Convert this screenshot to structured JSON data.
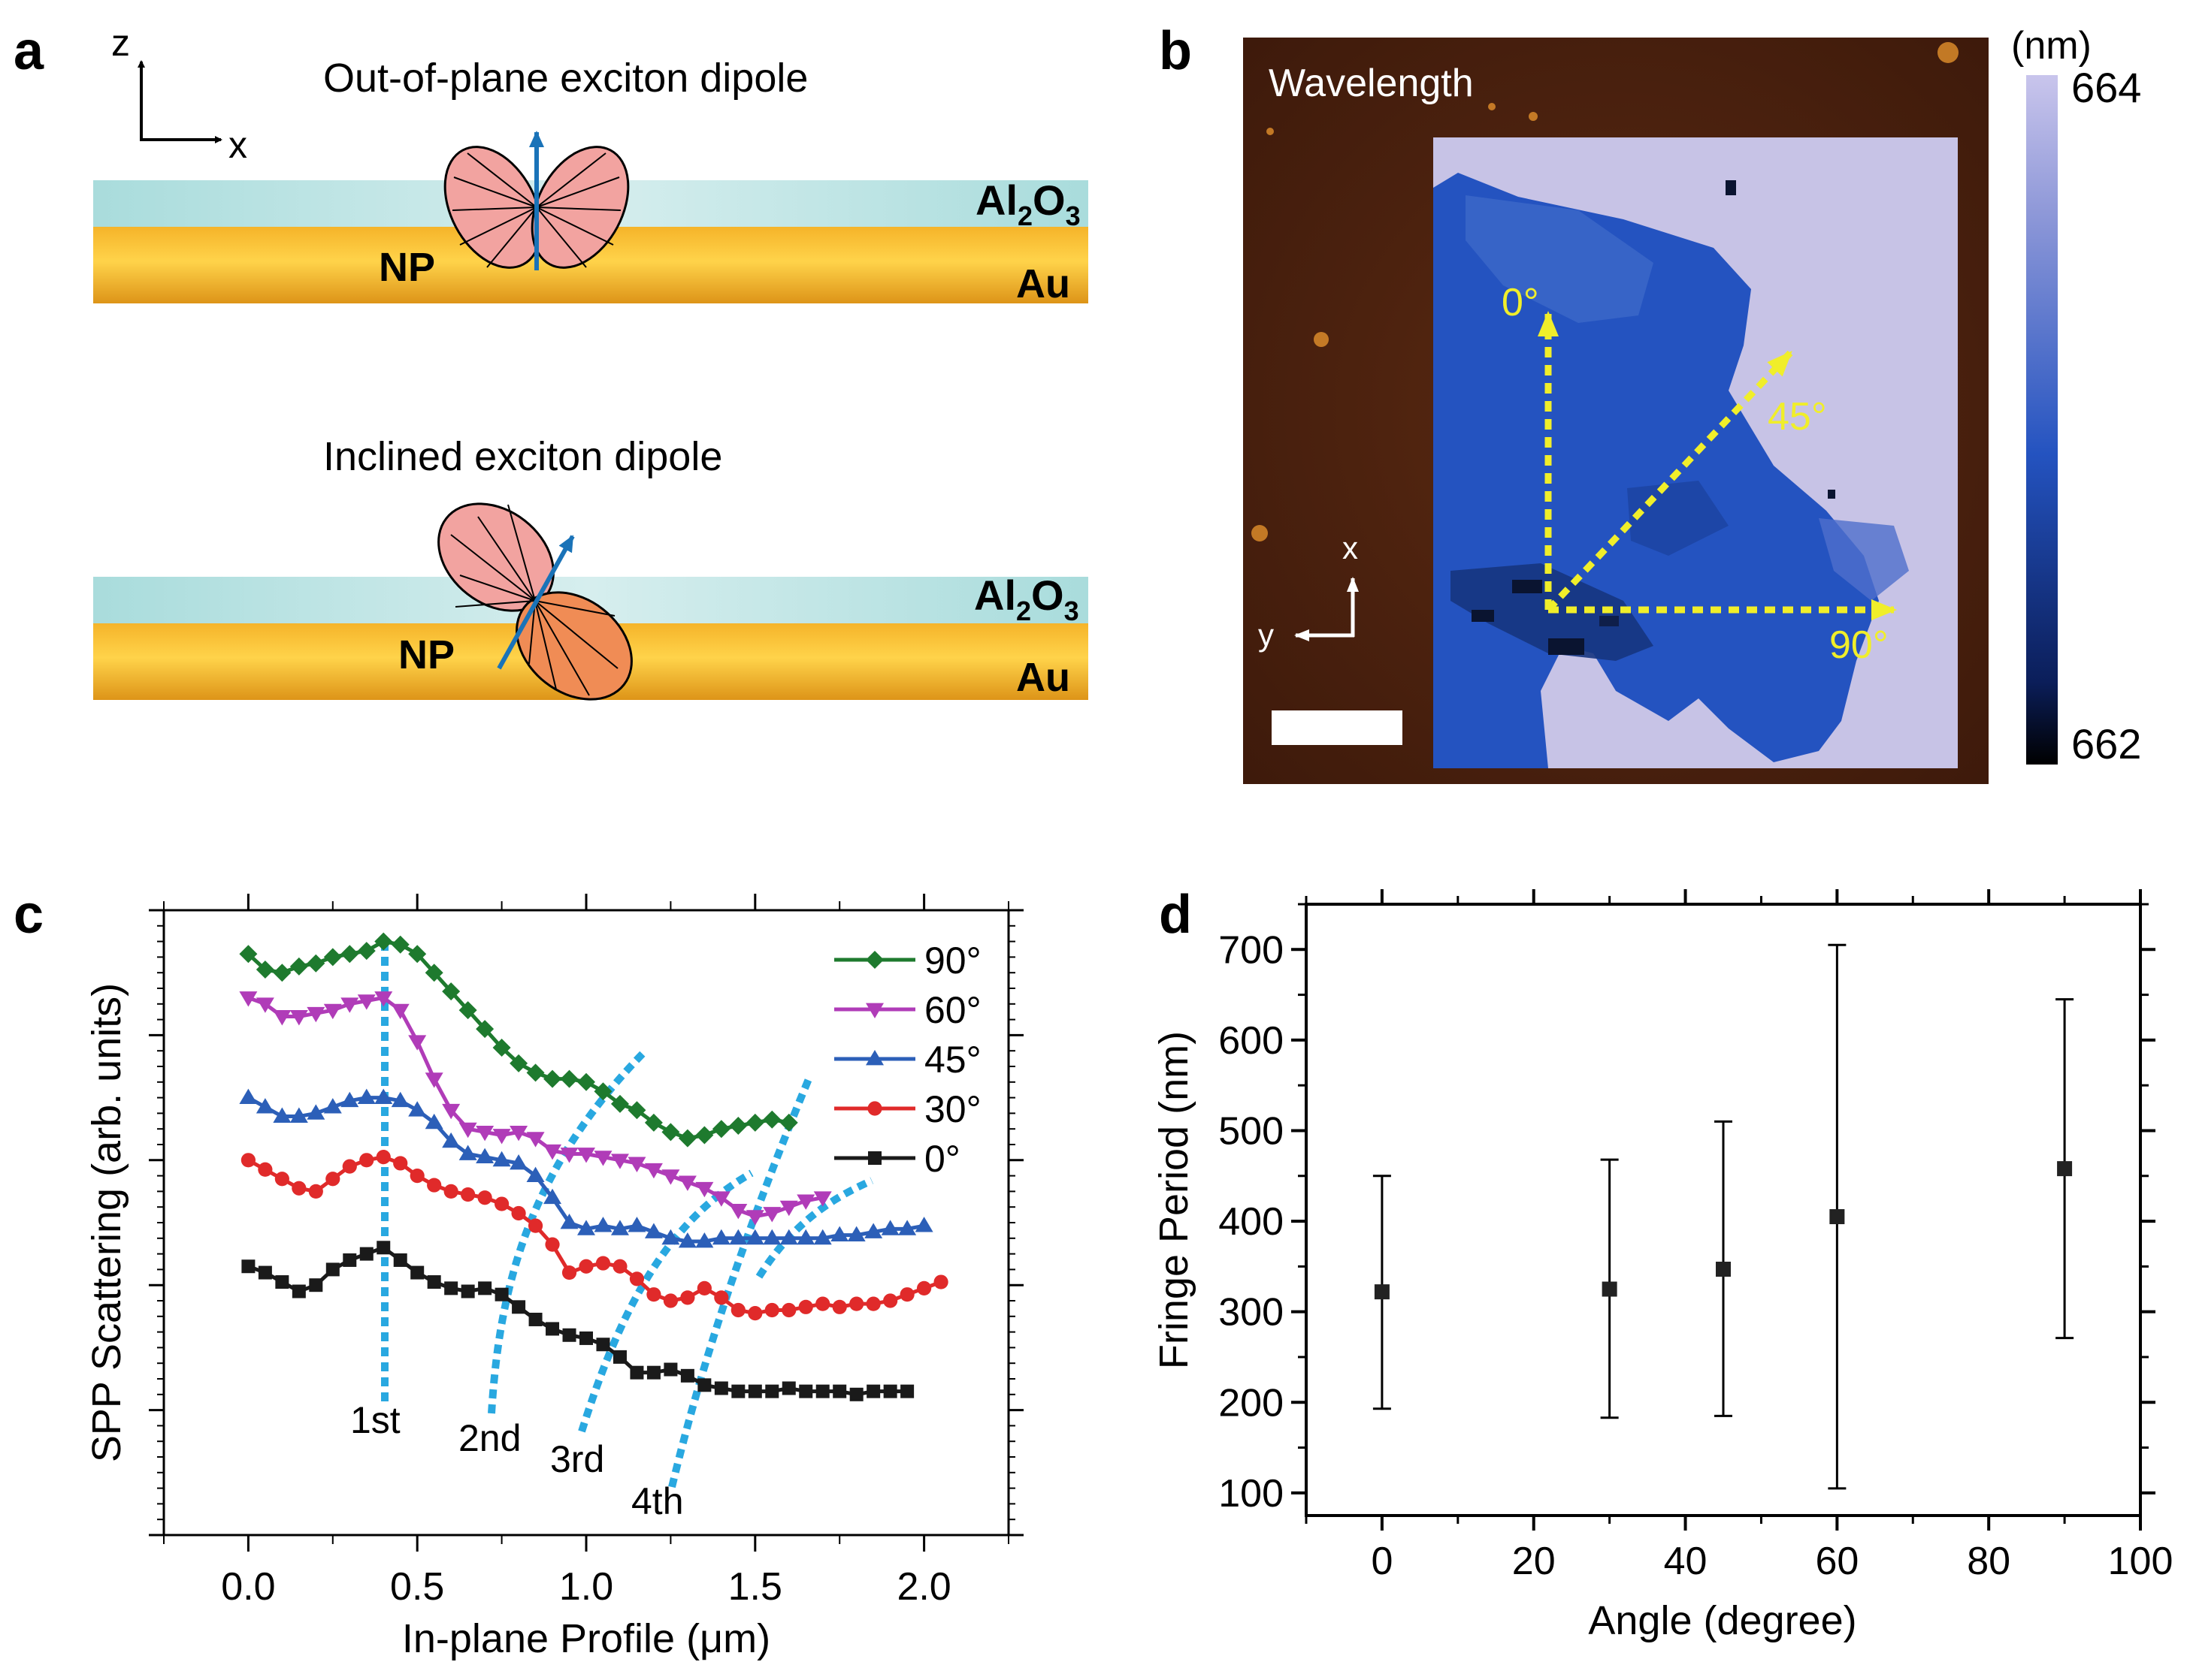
{
  "panels": {
    "a": {
      "letter": "a",
      "axis_z": "z",
      "axis_x": "x",
      "top_title": "Out-of-plane exciton dipole",
      "bottom_title": "Inclined exciton dipole",
      "layer_oxide": "Al",
      "oxide_sub1": "2",
      "oxide_o": "O",
      "oxide_sub2": "3",
      "layer_metal": "Au",
      "np_label": "NP",
      "colors": {
        "oxide": "#bfe3e3",
        "gold_light": "#ffcd3c",
        "gold_dark": "#e09a1a",
        "lobe_top": "#f2a3a0",
        "lobe_bottom": "#f08c55",
        "arrow": "#1a73b8"
      }
    },
    "b": {
      "letter": "b",
      "map_title": "Wavelength",
      "angle_0": "0°",
      "angle_45": "45°",
      "angle_90": "90°",
      "axis_x": "x",
      "axis_y": "y",
      "colorbar_unit": "(nm)",
      "colorbar_max": "664",
      "colorbar_min": "662",
      "colors": {
        "afm_bg": "#4a200e",
        "map_bg": "#c7c3e6",
        "map_blue": "#2453c0",
        "dotted_arrow": "#f0ee2a"
      }
    },
    "c": {
      "letter": "c",
      "order_labels": [
        "1st",
        "2nd",
        "3rd",
        "4th"
      ],
      "colors": {
        "guide": "#29a8e0"
      }
    },
    "d": {
      "letter": "d"
    }
  },
  "chart_data": [
    {
      "type": "line",
      "panel": "c",
      "title": "",
      "xlabel": "In-plane Profile (μm)",
      "ylabel": "SPP Scattering (arb. units)",
      "xlim": [
        -0.25,
        2.25
      ],
      "ylim": [
        0,
        10
      ],
      "xticks": [
        "0.0",
        "0.5",
        "1.0",
        "1.5",
        "2.0"
      ],
      "legend_position": "top-right",
      "series": [
        {
          "name": "90°",
          "color": "#1e7a2e",
          "marker": "diamond",
          "x": [
            0,
            0.05,
            0.1,
            0.15,
            0.2,
            0.25,
            0.3,
            0.35,
            0.4,
            0.45,
            0.5,
            0.55,
            0.6,
            0.65,
            0.7,
            0.75,
            0.8,
            0.85,
            0.9,
            0.95,
            1.0,
            1.05,
            1.1,
            1.15,
            1.2,
            1.25,
            1.3,
            1.35,
            1.4,
            1.45,
            1.5,
            1.55,
            1.6
          ],
          "y": [
            9.3,
            9.05,
            9.0,
            9.1,
            9.15,
            9.25,
            9.3,
            9.35,
            9.5,
            9.45,
            9.3,
            9.0,
            8.7,
            8.4,
            8.1,
            7.8,
            7.55,
            7.4,
            7.3,
            7.3,
            7.25,
            7.1,
            6.9,
            6.8,
            6.6,
            6.45,
            6.35,
            6.4,
            6.5,
            6.55,
            6.6,
            6.65,
            6.6
          ]
        },
        {
          "name": "60°",
          "color": "#b03cb8",
          "marker": "triangle-down",
          "x": [
            0,
            0.05,
            0.1,
            0.15,
            0.2,
            0.25,
            0.3,
            0.35,
            0.4,
            0.45,
            0.5,
            0.55,
            0.6,
            0.65,
            0.7,
            0.75,
            0.8,
            0.85,
            0.9,
            0.95,
            1.0,
            1.05,
            1.1,
            1.15,
            1.2,
            1.25,
            1.3,
            1.35,
            1.4,
            1.45,
            1.5,
            1.55,
            1.6,
            1.65,
            1.7
          ],
          "y": [
            8.6,
            8.5,
            8.3,
            8.3,
            8.35,
            8.4,
            8.5,
            8.55,
            8.6,
            8.4,
            7.9,
            7.3,
            6.8,
            6.5,
            6.45,
            6.4,
            6.45,
            6.35,
            6.15,
            6.1,
            6.1,
            6.05,
            6.0,
            5.95,
            5.85,
            5.75,
            5.65,
            5.55,
            5.4,
            5.2,
            5.1,
            5.15,
            5.25,
            5.35,
            5.4
          ]
        },
        {
          "name": "45°",
          "color": "#2c5fb8",
          "marker": "triangle-up",
          "x": [
            0,
            0.05,
            0.1,
            0.15,
            0.2,
            0.25,
            0.3,
            0.35,
            0.4,
            0.45,
            0.5,
            0.55,
            0.6,
            0.65,
            0.7,
            0.75,
            0.8,
            0.85,
            0.9,
            0.95,
            1.0,
            1.05,
            1.1,
            1.15,
            1.2,
            1.25,
            1.3,
            1.35,
            1.4,
            1.45,
            1.5,
            1.55,
            1.6,
            1.65,
            1.7,
            1.75,
            1.8,
            1.85,
            1.9,
            1.95,
            2.0
          ],
          "y": [
            7.0,
            6.85,
            6.7,
            6.7,
            6.75,
            6.85,
            6.95,
            7.0,
            7.0,
            6.95,
            6.8,
            6.6,
            6.3,
            6.1,
            6.05,
            6.0,
            5.95,
            5.75,
            5.4,
            5.0,
            4.9,
            4.95,
            4.9,
            4.95,
            4.85,
            4.75,
            4.7,
            4.7,
            4.75,
            4.75,
            4.75,
            4.75,
            4.75,
            4.75,
            4.75,
            4.8,
            4.8,
            4.85,
            4.9,
            4.9,
            4.95
          ]
        },
        {
          "name": "30°",
          "color": "#e02a2a",
          "marker": "circle",
          "x": [
            0,
            0.05,
            0.1,
            0.15,
            0.2,
            0.25,
            0.3,
            0.35,
            0.4,
            0.45,
            0.5,
            0.55,
            0.6,
            0.65,
            0.7,
            0.75,
            0.8,
            0.85,
            0.9,
            0.95,
            1.0,
            1.05,
            1.1,
            1.15,
            1.2,
            1.25,
            1.3,
            1.35,
            1.4,
            1.45,
            1.5,
            1.55,
            1.6,
            1.65,
            1.7,
            1.75,
            1.8,
            1.85,
            1.9,
            1.95,
            2.0,
            2.05
          ],
          "y": [
            6.0,
            5.85,
            5.7,
            5.55,
            5.5,
            5.7,
            5.9,
            6.0,
            6.05,
            5.95,
            5.75,
            5.6,
            5.5,
            5.45,
            5.4,
            5.3,
            5.15,
            4.95,
            4.65,
            4.2,
            4.3,
            4.35,
            4.3,
            4.1,
            3.85,
            3.75,
            3.8,
            3.95,
            3.8,
            3.6,
            3.55,
            3.6,
            3.6,
            3.65,
            3.7,
            3.65,
            3.7,
            3.7,
            3.75,
            3.85,
            3.95,
            4.05
          ]
        },
        {
          "name": "0°",
          "color": "#1a1a1a",
          "marker": "square",
          "x": [
            0,
            0.05,
            0.1,
            0.15,
            0.2,
            0.25,
            0.3,
            0.35,
            0.4,
            0.45,
            0.5,
            0.55,
            0.6,
            0.65,
            0.7,
            0.75,
            0.8,
            0.85,
            0.9,
            0.95,
            1.0,
            1.05,
            1.1,
            1.15,
            1.2,
            1.25,
            1.3,
            1.35,
            1.4,
            1.45,
            1.5,
            1.55,
            1.6,
            1.65,
            1.7,
            1.75,
            1.8,
            1.85,
            1.9,
            1.95
          ],
          "y": [
            4.3,
            4.2,
            4.05,
            3.9,
            4.0,
            4.25,
            4.4,
            4.5,
            4.6,
            4.4,
            4.2,
            4.05,
            3.95,
            3.9,
            3.95,
            3.85,
            3.65,
            3.45,
            3.3,
            3.2,
            3.15,
            3.05,
            2.85,
            2.6,
            2.6,
            2.65,
            2.55,
            2.4,
            2.35,
            2.3,
            2.3,
            2.3,
            2.35,
            2.3,
            2.3,
            2.3,
            2.25,
            2.3,
            2.3,
            2.3
          ]
        }
      ]
    },
    {
      "type": "scatter",
      "panel": "d",
      "title": "",
      "xlabel": "Angle (degree)",
      "ylabel": "Fringe Period (nm)",
      "xlim": [
        -10,
        100
      ],
      "ylim": [
        75,
        750
      ],
      "xticks": [
        "0",
        "20",
        "40",
        "60",
        "80",
        "100"
      ],
      "yticks": [
        "100",
        "200",
        "300",
        "400",
        "500",
        "600",
        "700"
      ],
      "points": [
        {
          "x": 0,
          "y": 322,
          "low": 193,
          "high": 450
        },
        {
          "x": 30,
          "y": 325,
          "low": 183,
          "high": 468
        },
        {
          "x": 45,
          "y": 347,
          "low": 185,
          "high": 510
        },
        {
          "x": 60,
          "y": 405,
          "low": 105,
          "high": 705
        },
        {
          "x": 90,
          "y": 458,
          "low": 271,
          "high": 645
        }
      ]
    }
  ]
}
